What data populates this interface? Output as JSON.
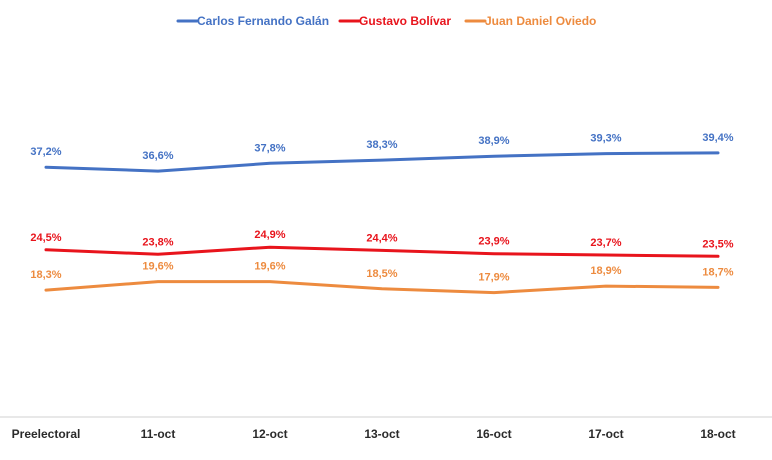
{
  "chart_data": {
    "type": "line",
    "title": "",
    "xlabel": "",
    "ylabel": "",
    "categories": [
      "Preelectoral",
      "11-oct",
      "12-oct",
      "13-oct",
      "16-oct",
      "17-oct",
      "18-oct"
    ],
    "ylim": [
      0,
      50
    ],
    "grid": false,
    "legend_position": "top",
    "series": [
      {
        "name": "Carlos Fernando Galán",
        "color": "#4472c4",
        "values": [
          37.2,
          36.6,
          37.8,
          38.3,
          38.9,
          39.3,
          39.4
        ],
        "labels": [
          "37,2%",
          "36,6%",
          "37,8%",
          "38,3%",
          "38,9%",
          "39,3%",
          "39,4%"
        ]
      },
      {
        "name": "Gustavo Bolívar",
        "color": "#e8141c",
        "values": [
          24.5,
          23.8,
          24.9,
          24.4,
          23.9,
          23.7,
          23.5
        ],
        "labels": [
          "24,5%",
          "23,8%",
          "24,9%",
          "24,4%",
          "23,9%",
          "23,7%",
          "23,5%"
        ]
      },
      {
        "name": "Juan Daniel Oviedo",
        "color": "#ed8b3f",
        "values": [
          18.3,
          19.6,
          19.6,
          18.5,
          17.9,
          18.9,
          18.7
        ],
        "labels": [
          "18,3%",
          "19,6%",
          "19,6%",
          "18,5%",
          "17,9%",
          "18,9%",
          "18,7%"
        ]
      }
    ]
  }
}
